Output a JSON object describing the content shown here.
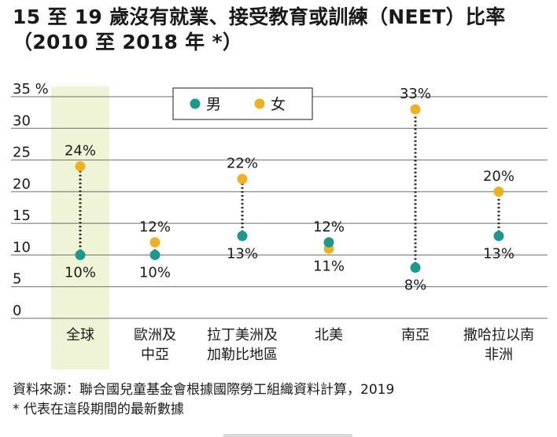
{
  "title": {
    "line1": "15 至 19 歲沒有就業、接受教育或訓練（NEET）比率",
    "line2": "（2010 至 2018 年 *）"
  },
  "chart_data": {
    "type": "dot-range",
    "y_unit_label": "%",
    "ylim": [
      0,
      35
    ],
    "y_ticks": [
      0,
      5,
      10,
      15,
      20,
      25,
      30,
      35
    ],
    "categories": [
      "全球",
      "歐洲及\n中亞",
      "拉丁美洲及\n加勒比地區",
      "北美",
      "南亞",
      "撒哈拉以南\n非洲"
    ],
    "highlight_category": "全球",
    "series": [
      {
        "name": "男",
        "color": "#1a9a8e",
        "values": [
          10,
          10,
          13,
          12,
          8,
          13
        ]
      },
      {
        "name": "女",
        "color": "#f0b11e",
        "values": [
          24,
          12,
          22,
          11,
          33,
          20
        ]
      }
    ],
    "labels": {
      "男": [
        "10%",
        "10%",
        "13%",
        "12%",
        "8%",
        "13%"
      ],
      "女": [
        "24%",
        "12%",
        "22%",
        "11%",
        "33%",
        "20%"
      ]
    },
    "legend_position": "top-left",
    "grid": true
  },
  "footer": {
    "source": "資料來源：聯合國兒童基金會根據國際勞工組織資料計算，2019",
    "note": "* 代表在這段期間的最新數據"
  }
}
